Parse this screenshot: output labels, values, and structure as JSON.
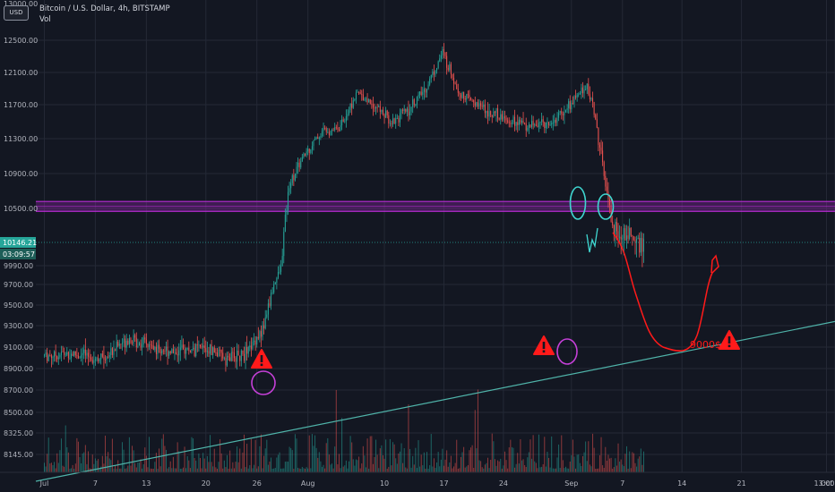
{
  "header": {
    "currency_badge": "USD",
    "symbol_line": "Bitcoin / U.S. Dollar, 4h, BITSTAMP",
    "volume_label": "Vol"
  },
  "price_badge": {
    "value": "10146.21",
    "countdown": "03:09:57"
  },
  "colors": {
    "background": "#131722",
    "up": "#26a69a",
    "down": "#ef5350",
    "zone": "#b52bd1",
    "trendline": "#4fb3a9",
    "forecast": "#ff1a1a",
    "warning": "#ff1a1a",
    "circle_cyan": "#3fd6d0",
    "circle_magenta": "#c540d8"
  },
  "chart_data": {
    "type": "candlestick",
    "interval": "4h",
    "y_ticks": [
      "13000.00",
      "12500.00",
      "12100.00",
      "11700.00",
      "11300.00",
      "10900.00",
      "10500.00",
      "10146.21",
      "9990.00",
      "9700.00",
      "9500.00",
      "9300.00",
      "9100.00",
      "8900.00",
      "8700.00",
      "8500.00",
      "8325.00",
      "8145.00"
    ],
    "ylim": [
      8000,
      13000
    ],
    "x_ticks": [
      "Jul",
      "7",
      "13",
      "20",
      "26",
      "Aug",
      "10",
      "17",
      "24",
      "Sep",
      "7",
      "14",
      "21",
      "Oct",
      "13:00"
    ],
    "xlim": [
      "2019-06-30",
      "2019-10-02"
    ],
    "price_path": [
      [
        "2019-07-01",
        9020
      ],
      [
        "2019-07-04",
        9040
      ],
      [
        "2019-07-08",
        8990
      ],
      [
        "2019-07-11",
        9190
      ],
      [
        "2019-07-14",
        9090
      ],
      [
        "2019-07-17",
        9060
      ],
      [
        "2019-07-20",
        9090
      ],
      [
        "2019-07-23",
        8990
      ],
      [
        "2019-07-25",
        9050
      ],
      [
        "2019-07-27",
        9300
      ],
      [
        "2019-07-28",
        9650
      ],
      [
        "2019-07-29",
        9950
      ],
      [
        "2019-07-30",
        10800
      ],
      [
        "2019-08-01",
        11150
      ],
      [
        "2019-08-03",
        11400
      ],
      [
        "2019-08-05",
        11450
      ],
      [
        "2019-08-07",
        11850
      ],
      [
        "2019-08-09",
        11700
      ],
      [
        "2019-08-11",
        11500
      ],
      [
        "2019-08-13",
        11650
      ],
      [
        "2019-08-15",
        11900
      ],
      [
        "2019-08-17",
        12350
      ],
      [
        "2019-08-19",
        11850
      ],
      [
        "2019-08-21",
        11700
      ],
      [
        "2019-08-24",
        11550
      ],
      [
        "2019-08-27",
        11450
      ],
      [
        "2019-08-30",
        11500
      ],
      [
        "2019-09-01",
        11700
      ],
      [
        "2019-09-03",
        11950
      ],
      [
        "2019-09-04",
        11550
      ],
      [
        "2019-09-05",
        10850
      ],
      [
        "2019-09-06",
        10300
      ],
      [
        "2019-09-07",
        10200
      ],
      [
        "2019-09-08",
        10250
      ],
      [
        "2019-09-09",
        10146
      ]
    ],
    "zone": {
      "low": 10470,
      "high": 10580
    },
    "trendline": [
      [
        "2019-06-30",
        7920
      ],
      [
        "2019-10-02",
        9340
      ]
    ],
    "forecast_target_label": "9000$"
  }
}
